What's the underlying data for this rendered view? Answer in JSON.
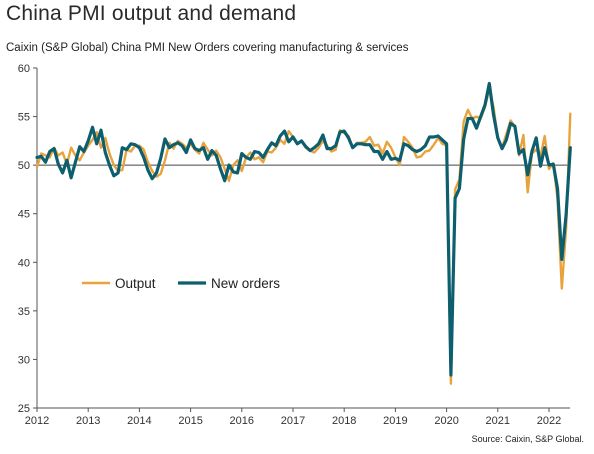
{
  "title": "China PMI output and demand",
  "subtitle": "Caixin (S&P Global) China PMI New Orders covering manufacturing & services",
  "source": "Source: Caixin, S&P Global.",
  "chart_data": {
    "type": "line",
    "title": "China PMI output and demand",
    "subtitle": "Caixin (S&P Global) China PMI New Orders covering manufacturing & services",
    "xlabel": "",
    "ylabel": "",
    "ylim": [
      25,
      60
    ],
    "yticks": [
      25,
      30,
      35,
      40,
      45,
      50,
      55,
      60
    ],
    "x_tick_labels": [
      "2012",
      "2013",
      "2014",
      "2015",
      "2016",
      "2017",
      "2018",
      "2019",
      "2020",
      "2021",
      "2022"
    ],
    "x_start": "2012-01",
    "x_end": "2022-05",
    "reference_line": 50,
    "grid": false,
    "legend_position": "left-middle",
    "colors": {
      "output": "#e8a33d",
      "new_orders": "#0e5f6e",
      "axis": "#555555"
    },
    "series": [
      {
        "name": "Output",
        "key": "output",
        "points": [
          [
            "2012-01",
            49.8
          ],
          [
            "2012-02",
            51.2
          ],
          [
            "2012-03",
            51.0
          ],
          [
            "2012-04",
            50.8
          ],
          [
            "2012-05",
            51.8
          ],
          [
            "2012-06",
            51.0
          ],
          [
            "2012-07",
            51.3
          ],
          [
            "2012-08",
            50.1
          ],
          [
            "2012-09",
            51.8
          ],
          [
            "2012-10",
            51.0
          ],
          [
            "2012-11",
            50.5
          ],
          [
            "2012-12",
            51.3
          ],
          [
            "2013-01",
            52.0
          ],
          [
            "2013-02",
            52.6
          ],
          [
            "2013-03",
            53.4
          ],
          [
            "2013-04",
            51.8
          ],
          [
            "2013-05",
            52.8
          ],
          [
            "2013-06",
            51.2
          ],
          [
            "2013-07",
            50.0
          ],
          [
            "2013-08",
            49.4
          ],
          [
            "2013-09",
            49.5
          ],
          [
            "2013-10",
            51.6
          ],
          [
            "2013-11",
            51.4
          ],
          [
            "2013-12",
            52.0
          ],
          [
            "2014-01",
            52.0
          ],
          [
            "2014-02",
            51.6
          ],
          [
            "2014-03",
            50.3
          ],
          [
            "2014-04",
            49.4
          ],
          [
            "2014-05",
            48.8
          ],
          [
            "2014-06",
            49.1
          ],
          [
            "2014-07",
            50.5
          ],
          [
            "2014-08",
            52.3
          ],
          [
            "2014-09",
            51.7
          ],
          [
            "2014-10",
            52.5
          ],
          [
            "2014-11",
            52.2
          ],
          [
            "2014-12",
            51.8
          ],
          [
            "2015-01",
            52.2
          ],
          [
            "2015-02",
            51.6
          ],
          [
            "2015-03",
            51.2
          ],
          [
            "2015-04",
            52.3
          ],
          [
            "2015-05",
            51.6
          ],
          [
            "2015-06",
            51.0
          ],
          [
            "2015-07",
            51.5
          ],
          [
            "2015-08",
            50.8
          ],
          [
            "2015-09",
            49.6
          ],
          [
            "2015-10",
            48.4
          ],
          [
            "2015-11",
            50.0
          ],
          [
            "2015-12",
            50.5
          ],
          [
            "2016-01",
            49.4
          ],
          [
            "2016-02",
            50.8
          ],
          [
            "2016-03",
            51.3
          ],
          [
            "2016-04",
            50.6
          ],
          [
            "2016-05",
            50.8
          ],
          [
            "2016-06",
            50.3
          ],
          [
            "2016-07",
            51.4
          ],
          [
            "2016-08",
            51.3
          ],
          [
            "2016-09",
            51.8
          ],
          [
            "2016-10",
            52.6
          ],
          [
            "2016-11",
            52.2
          ],
          [
            "2016-12",
            53.5
          ],
          [
            "2017-01",
            52.9
          ],
          [
            "2017-02",
            52.2
          ],
          [
            "2017-03",
            52.5
          ],
          [
            "2017-04",
            51.8
          ],
          [
            "2017-05",
            51.5
          ],
          [
            "2017-06",
            51.3
          ],
          [
            "2017-07",
            51.8
          ],
          [
            "2017-08",
            52.5
          ],
          [
            "2017-09",
            52.0
          ],
          [
            "2017-10",
            51.4
          ],
          [
            "2017-11",
            51.6
          ],
          [
            "2017-12",
            53.6
          ],
          [
            "2018-01",
            53.3
          ],
          [
            "2018-02",
            53.0
          ],
          [
            "2018-03",
            51.8
          ],
          [
            "2018-04",
            52.3
          ],
          [
            "2018-05",
            52.3
          ],
          [
            "2018-06",
            52.4
          ],
          [
            "2018-07",
            52.9
          ],
          [
            "2018-08",
            52.0
          ],
          [
            "2018-09",
            52.1
          ],
          [
            "2018-10",
            51.2
          ],
          [
            "2018-11",
            52.4
          ],
          [
            "2018-12",
            51.8
          ],
          [
            "2019-01",
            50.8
          ],
          [
            "2019-02",
            50.0
          ],
          [
            "2019-03",
            52.9
          ],
          [
            "2019-04",
            52.4
          ],
          [
            "2019-05",
            51.8
          ],
          [
            "2019-06",
            50.8
          ],
          [
            "2019-07",
            50.9
          ],
          [
            "2019-08",
            51.4
          ],
          [
            "2019-09",
            51.5
          ],
          [
            "2019-10",
            52.1
          ],
          [
            "2019-11",
            52.8
          ],
          [
            "2019-12",
            52.2
          ],
          [
            "2020-01",
            52.0
          ],
          [
            "2020-02",
            27.5
          ],
          [
            "2020-03",
            47.5
          ],
          [
            "2020-04",
            48.5
          ],
          [
            "2020-05",
            54.5
          ],
          [
            "2020-06",
            55.7
          ],
          [
            "2020-07",
            54.8
          ],
          [
            "2020-08",
            55.0
          ],
          [
            "2020-09",
            54.8
          ],
          [
            "2020-10",
            56.0
          ],
          [
            "2020-11",
            57.8
          ],
          [
            "2020-12",
            56.0
          ],
          [
            "2021-01",
            52.8
          ],
          [
            "2021-02",
            51.8
          ],
          [
            "2021-03",
            53.2
          ],
          [
            "2021-04",
            54.6
          ],
          [
            "2021-05",
            54.0
          ],
          [
            "2021-06",
            51.0
          ],
          [
            "2021-07",
            53.1
          ],
          [
            "2021-08",
            47.2
          ],
          [
            "2021-09",
            51.2
          ],
          [
            "2021-10",
            51.6
          ],
          [
            "2021-11",
            50.9
          ],
          [
            "2021-12",
            53.0
          ],
          [
            "2022-01",
            49.6
          ],
          [
            "2022-02",
            50.2
          ],
          [
            "2022-03",
            46.5
          ],
          [
            "2022-04",
            37.3
          ],
          [
            "2022-05",
            43.5
          ],
          [
            "2022-06",
            55.3
          ]
        ]
      },
      {
        "name": "New orders",
        "key": "new_orders",
        "points": [
          [
            "2012-01",
            50.8
          ],
          [
            "2012-02",
            50.9
          ],
          [
            "2012-03",
            50.3
          ],
          [
            "2012-04",
            51.4
          ],
          [
            "2012-05",
            51.7
          ],
          [
            "2012-06",
            50.1
          ],
          [
            "2012-07",
            49.2
          ],
          [
            "2012-08",
            50.5
          ],
          [
            "2012-09",
            48.7
          ],
          [
            "2012-10",
            50.3
          ],
          [
            "2012-11",
            51.9
          ],
          [
            "2012-12",
            51.4
          ],
          [
            "2013-01",
            52.5
          ],
          [
            "2013-02",
            53.9
          ],
          [
            "2013-03",
            52.2
          ],
          [
            "2013-04",
            53.6
          ],
          [
            "2013-05",
            51.3
          ],
          [
            "2013-06",
            50.0
          ],
          [
            "2013-07",
            48.9
          ],
          [
            "2013-08",
            49.2
          ],
          [
            "2013-09",
            51.8
          ],
          [
            "2013-10",
            51.6
          ],
          [
            "2013-11",
            52.2
          ],
          [
            "2013-12",
            52.1
          ],
          [
            "2014-01",
            51.8
          ],
          [
            "2014-02",
            50.8
          ],
          [
            "2014-03",
            49.5
          ],
          [
            "2014-04",
            48.6
          ],
          [
            "2014-05",
            49.2
          ],
          [
            "2014-06",
            50.7
          ],
          [
            "2014-07",
            52.7
          ],
          [
            "2014-08",
            51.8
          ],
          [
            "2014-09",
            52.1
          ],
          [
            "2014-10",
            52.3
          ],
          [
            "2014-11",
            52.0
          ],
          [
            "2014-12",
            51.3
          ],
          [
            "2015-01",
            52.6
          ],
          [
            "2015-02",
            51.7
          ],
          [
            "2015-03",
            51.5
          ],
          [
            "2015-04",
            51.8
          ],
          [
            "2015-05",
            50.6
          ],
          [
            "2015-06",
            51.5
          ],
          [
            "2015-07",
            51.0
          ],
          [
            "2015-08",
            49.6
          ],
          [
            "2015-09",
            48.4
          ],
          [
            "2015-10",
            50.0
          ],
          [
            "2015-11",
            49.3
          ],
          [
            "2015-12",
            49.2
          ],
          [
            "2016-01",
            51.2
          ],
          [
            "2016-02",
            50.8
          ],
          [
            "2016-03",
            50.6
          ],
          [
            "2016-04",
            51.4
          ],
          [
            "2016-05",
            51.3
          ],
          [
            "2016-06",
            50.8
          ],
          [
            "2016-07",
            51.6
          ],
          [
            "2016-08",
            52.3
          ],
          [
            "2016-09",
            52.0
          ],
          [
            "2016-10",
            53.0
          ],
          [
            "2016-11",
            53.5
          ],
          [
            "2016-12",
            52.4
          ],
          [
            "2017-01",
            52.9
          ],
          [
            "2017-02",
            52.2
          ],
          [
            "2017-03",
            52.5
          ],
          [
            "2017-04",
            51.9
          ],
          [
            "2017-05",
            51.5
          ],
          [
            "2017-06",
            51.8
          ],
          [
            "2017-07",
            52.2
          ],
          [
            "2017-08",
            53.1
          ],
          [
            "2017-09",
            51.7
          ],
          [
            "2017-10",
            51.7
          ],
          [
            "2017-11",
            52.0
          ],
          [
            "2017-12",
            53.4
          ],
          [
            "2018-01",
            53.5
          ],
          [
            "2018-02",
            52.8
          ],
          [
            "2018-03",
            51.8
          ],
          [
            "2018-04",
            52.2
          ],
          [
            "2018-05",
            52.2
          ],
          [
            "2018-06",
            52.1
          ],
          [
            "2018-07",
            52.1
          ],
          [
            "2018-08",
            51.4
          ],
          [
            "2018-09",
            51.4
          ],
          [
            "2018-10",
            50.6
          ],
          [
            "2018-11",
            51.4
          ],
          [
            "2018-12",
            50.6
          ],
          [
            "2019-01",
            50.7
          ],
          [
            "2019-02",
            50.5
          ],
          [
            "2019-03",
            52.2
          ],
          [
            "2019-04",
            52.0
          ],
          [
            "2019-05",
            51.6
          ],
          [
            "2019-06",
            51.4
          ],
          [
            "2019-07",
            51.6
          ],
          [
            "2019-08",
            52.0
          ],
          [
            "2019-09",
            52.9
          ],
          [
            "2019-10",
            52.9
          ],
          [
            "2019-11",
            53.0
          ],
          [
            "2019-12",
            52.6
          ],
          [
            "2020-01",
            52.2
          ],
          [
            "2020-02",
            28.4
          ],
          [
            "2020-03",
            46.6
          ],
          [
            "2020-04",
            47.6
          ],
          [
            "2020-05",
            52.7
          ],
          [
            "2020-06",
            54.8
          ],
          [
            "2020-07",
            54.8
          ],
          [
            "2020-08",
            53.8
          ],
          [
            "2020-09",
            55.0
          ],
          [
            "2020-10",
            56.2
          ],
          [
            "2020-11",
            58.4
          ],
          [
            "2020-12",
            55.2
          ],
          [
            "2021-01",
            52.8
          ],
          [
            "2021-02",
            51.7
          ],
          [
            "2021-03",
            52.6
          ],
          [
            "2021-04",
            54.3
          ],
          [
            "2021-05",
            54.0
          ],
          [
            "2021-06",
            51.2
          ],
          [
            "2021-07",
            51.6
          ],
          [
            "2021-08",
            49.0
          ],
          [
            "2021-09",
            51.4
          ],
          [
            "2021-10",
            52.8
          ],
          [
            "2021-11",
            49.9
          ],
          [
            "2021-12",
            51.8
          ],
          [
            "2022-01",
            50.0
          ],
          [
            "2022-02",
            50.1
          ],
          [
            "2022-03",
            47.6
          ],
          [
            "2022-04",
            40.3
          ],
          [
            "2022-05",
            44.9
          ],
          [
            "2022-06",
            51.8
          ]
        ]
      }
    ]
  }
}
